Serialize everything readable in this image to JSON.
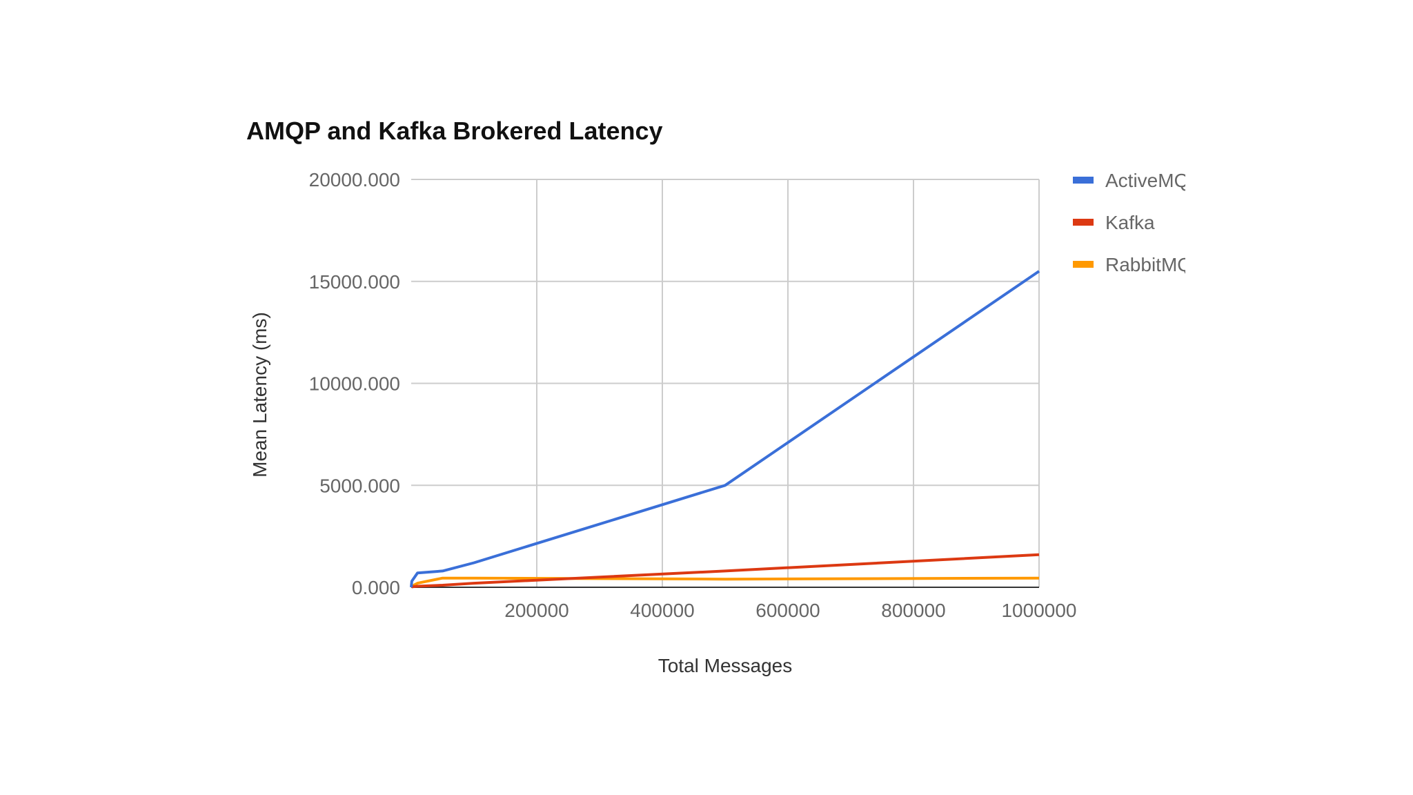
{
  "chart_data": {
    "type": "line",
    "title": "AMQP and Kafka Brokered Latency",
    "xlabel": "Total Messages",
    "ylabel": "Mean Latency (ms)",
    "xlim": [
      0,
      1000000
    ],
    "ylim": [
      0,
      20000
    ],
    "grid": true,
    "legend_position": "right",
    "x_ticks": [
      200000,
      400000,
      600000,
      800000,
      1000000
    ],
    "x_tick_labels": [
      "200000",
      "400000",
      "600000",
      "800000",
      "1000000"
    ],
    "y_ticks": [
      0,
      5000,
      10000,
      15000,
      20000
    ],
    "y_tick_labels": [
      "0.000",
      "5000.000",
      "10000.000",
      "15000.000",
      "20000.000"
    ],
    "series": [
      {
        "name": "ActiveMQ",
        "legend_label": "ActiveM ",
        "color": "#3a6fd8",
        "x": [
          1000,
          10000,
          50000,
          100000,
          500000,
          1000000
        ],
        "values": [
          300,
          700,
          800,
          1200,
          5000,
          15500
        ]
      },
      {
        "name": "Kafka",
        "legend_label": "Kafka",
        "color": "#dc3912",
        "x": [
          1000,
          10000,
          50000,
          100000,
          500000,
          1000000
        ],
        "values": [
          20,
          50,
          100,
          200,
          800,
          1600
        ]
      },
      {
        "name": "RabbitMQ",
        "legend_label": "RabbitM ",
        "color": "#ff9900",
        "x": [
          1000,
          10000,
          50000,
          100000,
          500000,
          1000000
        ],
        "values": [
          50,
          200,
          450,
          450,
          400,
          450
        ]
      }
    ]
  }
}
